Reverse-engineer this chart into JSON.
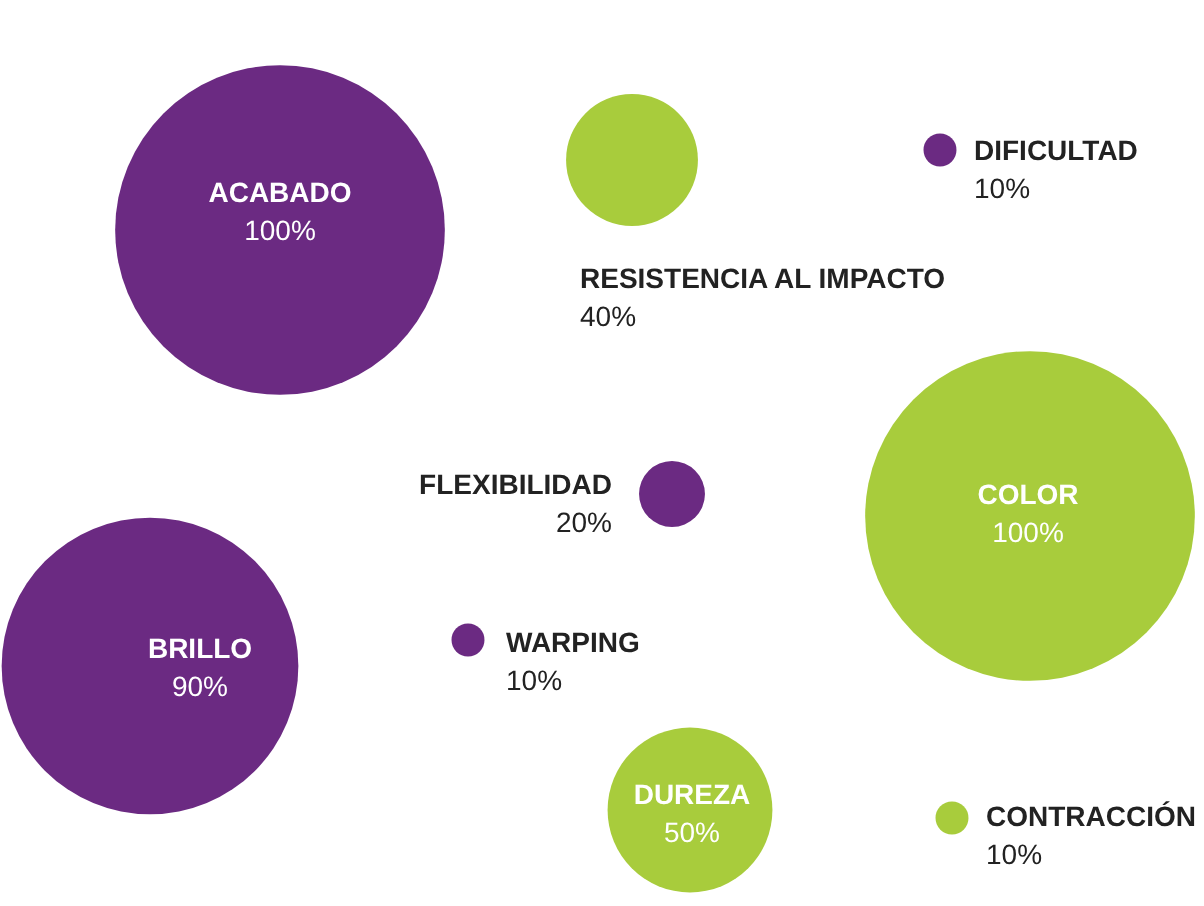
{
  "chart_data": {
    "type": "other",
    "categories": [
      "ACABADO",
      "RESISTENCIA AL IMPACTO",
      "DIFICULTAD",
      "FLEXIBILIDAD",
      "COLOR",
      "BRILLO",
      "WARPING",
      "DUREZA",
      "CONTRACCIÓN"
    ],
    "values": [
      100,
      40,
      10,
      20,
      100,
      90,
      10,
      50,
      10
    ],
    "value_labels": [
      "100%",
      "40%",
      "10%",
      "20%",
      "100%",
      "90%",
      "10%",
      "50%",
      "10%"
    ],
    "colors": [
      "#6b2a82",
      "#a8cc3c",
      "#6b2a82",
      "#6b2a82",
      "#a8cc3c",
      "#6b2a82",
      "#6b2a82",
      "#a8cc3c",
      "#a8cc3c"
    ]
  }
}
